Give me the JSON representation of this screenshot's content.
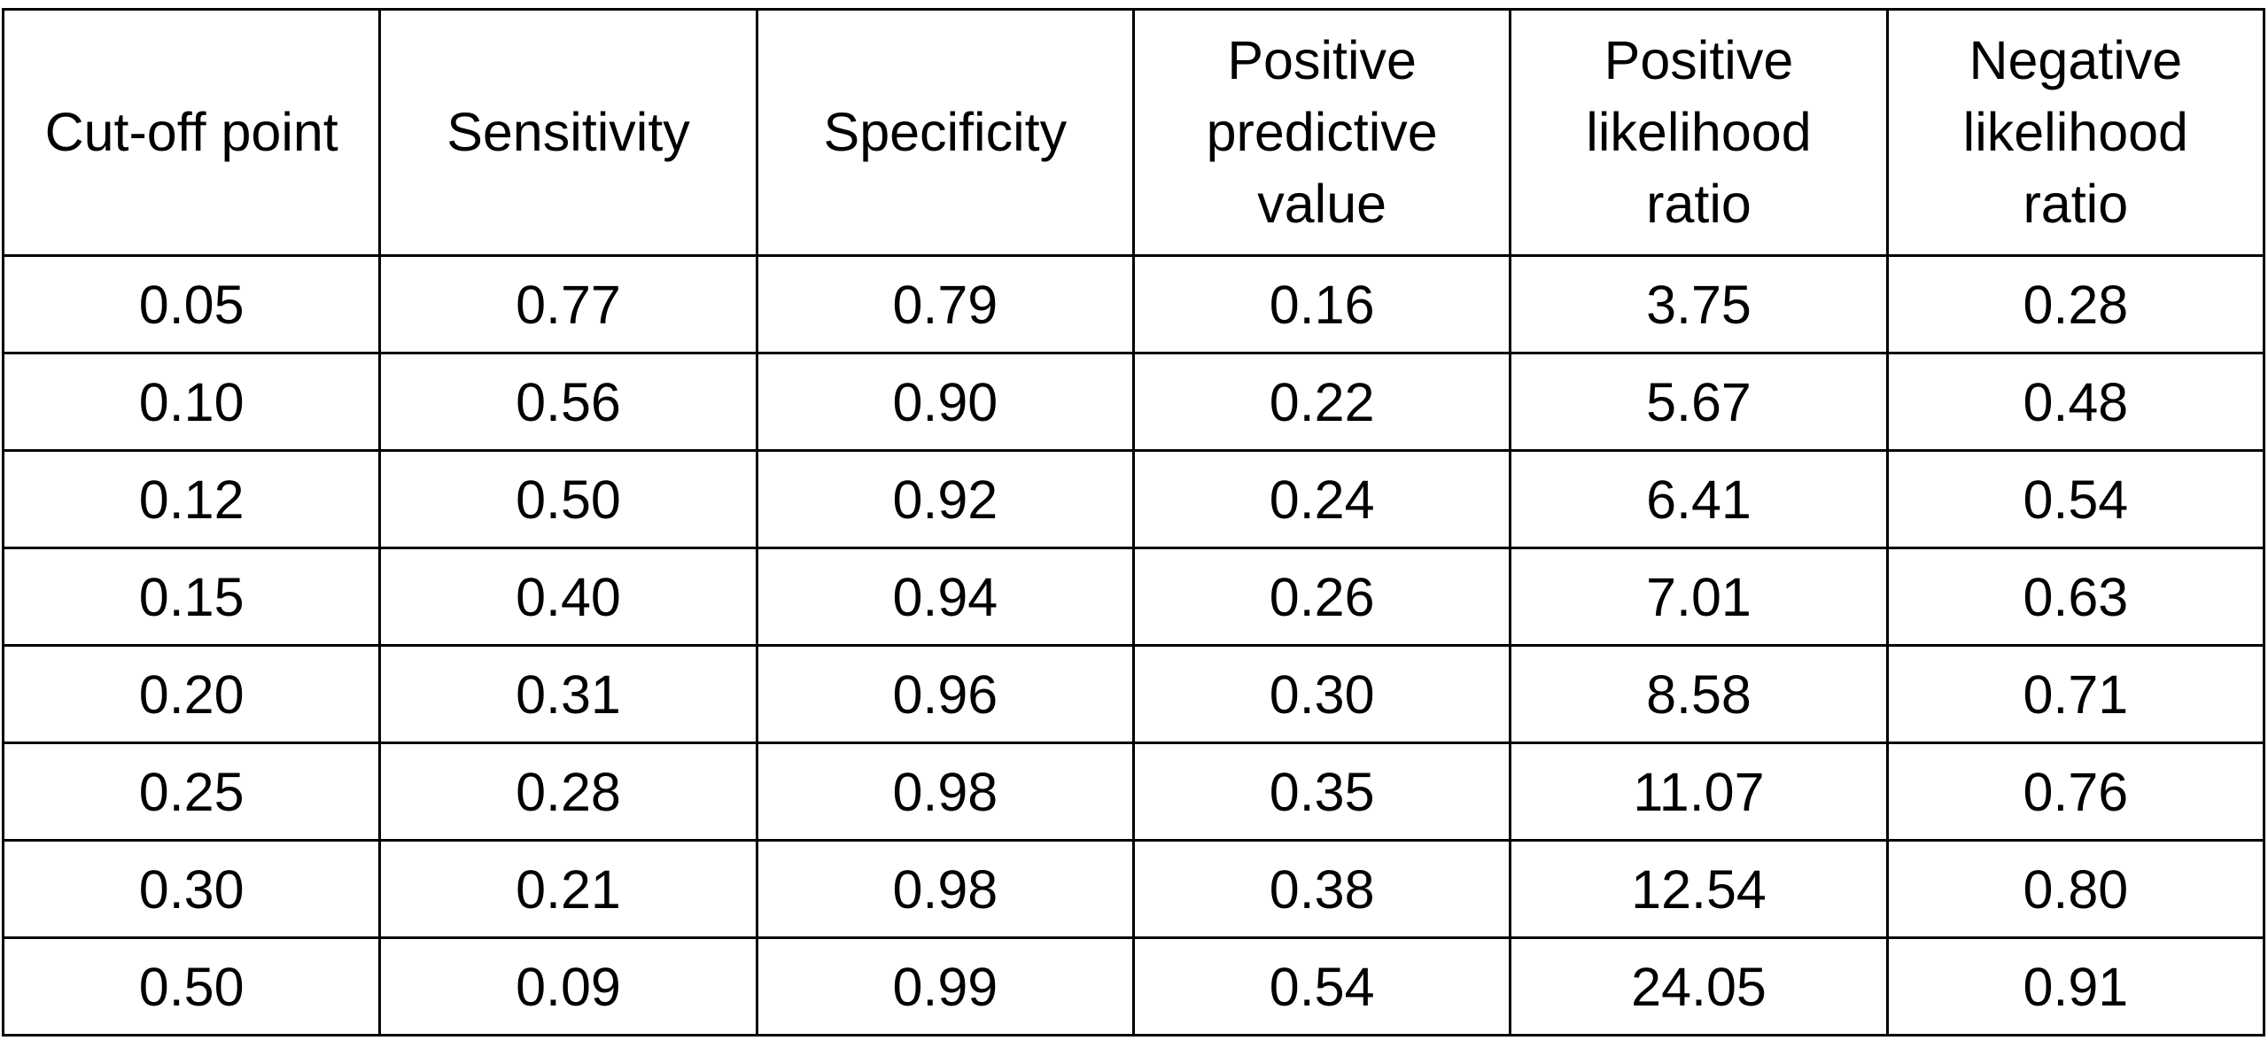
{
  "chart_data": {
    "type": "table",
    "columns": [
      {
        "key": "cutoff",
        "lines": [
          "Cut-off point"
        ]
      },
      {
        "key": "sensitivity",
        "lines": [
          "Sensitivity"
        ]
      },
      {
        "key": "specificity",
        "lines": [
          "Specificity"
        ]
      },
      {
        "key": "ppv",
        "lines": [
          "Positive",
          "predictive",
          "value"
        ]
      },
      {
        "key": "plr",
        "lines": [
          "Positive",
          "likelihood",
          "ratio"
        ]
      },
      {
        "key": "nlr",
        "lines": [
          "Negative",
          "likelihood",
          "ratio"
        ]
      }
    ],
    "rows": [
      [
        "0.05",
        "0.77",
        "0.79",
        "0.16",
        "3.75",
        "0.28"
      ],
      [
        "0.10",
        "0.56",
        "0.90",
        "0.22",
        "5.67",
        "0.48"
      ],
      [
        "0.12",
        "0.50",
        "0.92",
        "0.24",
        "6.41",
        "0.54"
      ],
      [
        "0.15",
        "0.40",
        "0.94",
        "0.26",
        "7.01",
        "0.63"
      ],
      [
        "0.20",
        "0.31",
        "0.96",
        "0.30",
        "8.58",
        "0.71"
      ],
      [
        "0.25",
        "0.28",
        "0.98",
        "0.35",
        "11.07",
        "0.76"
      ],
      [
        "0.30",
        "0.21",
        "0.98",
        "0.38",
        "12.54",
        "0.80"
      ],
      [
        "0.50",
        "0.09",
        "0.99",
        "0.54",
        "24.05",
        "0.91"
      ]
    ],
    "border_color": "#000000",
    "background_color": "#ffffff"
  }
}
